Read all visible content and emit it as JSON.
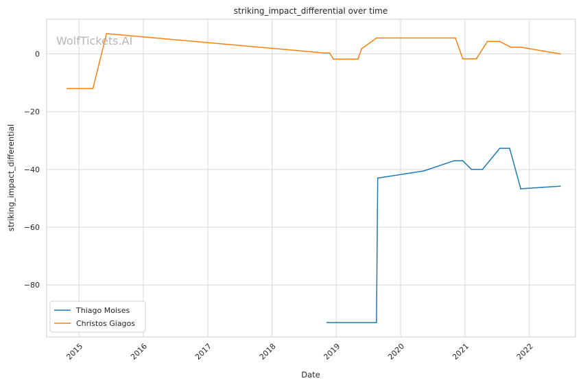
{
  "chart_data": {
    "type": "line",
    "title": "striking_impact_differential over time",
    "xlabel": "Date",
    "ylabel": "striking_impact_differential",
    "watermark": "WolfTickets.AI",
    "xlim": [
      "2014-07-01",
      "2022-09-20"
    ],
    "ylim": [
      -98,
      12
    ],
    "x_ticks": [
      "2015",
      "2016",
      "2017",
      "2018",
      "2019",
      "2020",
      "2021",
      "2022"
    ],
    "y_ticks": [
      0,
      -20,
      -40,
      -60,
      -80
    ],
    "grid": true,
    "legend_position": "lower-left",
    "series": [
      {
        "name": "Thiago Moises",
        "color": "#1f77b4",
        "points": [
          {
            "x": "2018-11-10",
            "y": -93.0
          },
          {
            "x": "2019-08-17",
            "y": -93.0
          },
          {
            "x": "2019-08-24",
            "y": -43.0
          },
          {
            "x": "2020-05-13",
            "y": -40.5
          },
          {
            "x": "2020-10-31",
            "y": -37.0
          },
          {
            "x": "2020-12-19",
            "y": -37.0
          },
          {
            "x": "2021-02-06",
            "y": -40.0
          },
          {
            "x": "2021-04-10",
            "y": -40.0
          },
          {
            "x": "2021-07-17",
            "y": -32.7
          },
          {
            "x": "2021-09-11",
            "y": -32.7
          },
          {
            "x": "2021-11-13",
            "y": -46.7
          },
          {
            "x": "2022-06-25",
            "y": -45.8
          }
        ]
      },
      {
        "name": "Christos Giagos",
        "color": "#ff7f0e",
        "points": [
          {
            "x": "2014-10-25",
            "y": -12.0
          },
          {
            "x": "2015-03-21",
            "y": -12.0
          },
          {
            "x": "2015-06-06",
            "y": 7.0
          },
          {
            "x": "2018-10-27",
            "y": 0.3
          },
          {
            "x": "2018-11-24",
            "y": 0.3
          },
          {
            "x": "2018-12-15",
            "y": -1.8
          },
          {
            "x": "2019-05-04",
            "y": -1.8
          },
          {
            "x": "2019-05-25",
            "y": 1.8
          },
          {
            "x": "2019-08-17",
            "y": 5.5
          },
          {
            "x": "2020-11-07",
            "y": 5.5
          },
          {
            "x": "2020-12-19",
            "y": -1.7
          },
          {
            "x": "2021-03-06",
            "y": -1.7
          },
          {
            "x": "2021-05-08",
            "y": 4.3
          },
          {
            "x": "2021-07-17",
            "y": 4.3
          },
          {
            "x": "2021-09-18",
            "y": 2.3
          },
          {
            "x": "2021-11-13",
            "y": 2.3
          },
          {
            "x": "2022-06-25",
            "y": 0.0
          }
        ]
      }
    ]
  }
}
